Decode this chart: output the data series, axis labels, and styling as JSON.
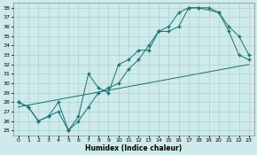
{
  "xlabel": "Humidex (Indice chaleur)",
  "xlim": [
    -0.5,
    23.5
  ],
  "ylim": [
    24.5,
    38.5
  ],
  "xticks": [
    0,
    1,
    2,
    3,
    4,
    5,
    6,
    7,
    8,
    9,
    10,
    11,
    12,
    13,
    14,
    15,
    16,
    17,
    18,
    19,
    20,
    21,
    22,
    23
  ],
  "yticks": [
    25,
    26,
    27,
    28,
    29,
    30,
    31,
    32,
    33,
    34,
    35,
    36,
    37,
    38
  ],
  "background_color": "#ceeaea",
  "grid_color": "#a8d4d4",
  "line_color": "#1a7070",
  "series1_x": [
    0,
    1,
    2,
    3,
    4,
    5,
    6,
    7,
    8,
    9,
    10,
    11,
    12,
    13,
    14,
    15,
    16,
    17,
    18,
    20,
    21,
    22,
    23
  ],
  "series1_y": [
    28.0,
    27.5,
    26.0,
    26.5,
    27.0,
    25.0,
    26.5,
    31.0,
    29.5,
    29.0,
    32.0,
    32.5,
    33.5,
    33.5,
    35.5,
    36.0,
    37.5,
    38.0,
    38.0,
    37.5,
    35.5,
    33.0,
    32.5
  ],
  "series2_x": [
    0,
    1,
    2,
    3,
    4,
    5,
    6,
    7,
    8,
    9,
    10,
    11,
    12,
    13,
    14,
    15,
    16,
    17,
    18,
    19,
    20,
    21,
    22,
    23
  ],
  "series2_y": [
    28.0,
    27.5,
    26.0,
    26.5,
    28.0,
    25.0,
    26.0,
    27.5,
    29.0,
    29.5,
    30.0,
    31.5,
    32.5,
    34.0,
    35.5,
    35.5,
    36.0,
    38.0,
    38.0,
    38.0,
    37.5,
    36.0,
    35.0,
    33.0
  ],
  "series3_x": [
    0,
    23
  ],
  "series3_y": [
    27.5,
    32.0
  ]
}
